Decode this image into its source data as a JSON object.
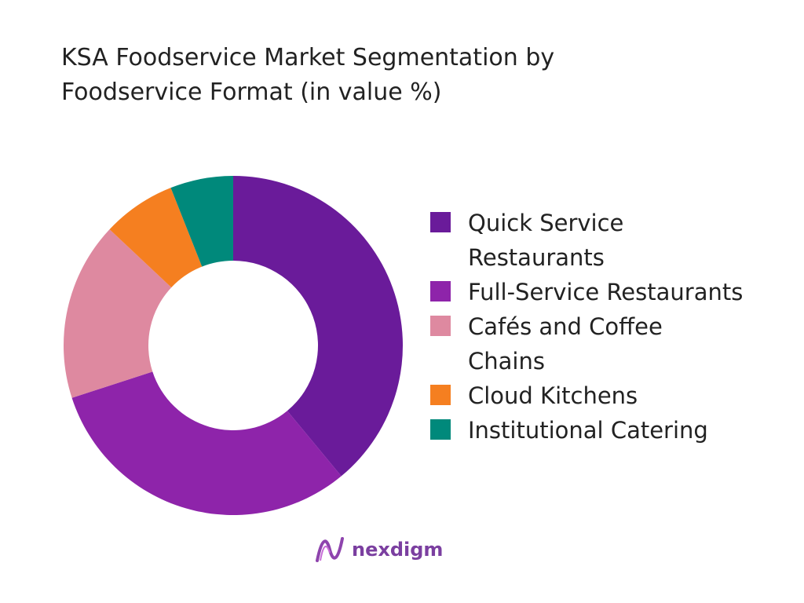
{
  "chart_data": {
    "type": "donut",
    "title": "KSA Foodservice Market Segmentation by Foodservice Format (in value %)",
    "categories": [
      "Quick Service Restaurants",
      "Full-Service Restaurants",
      "Cafés and Coffee Chains",
      "Cloud Kitchens",
      "Institutional Catering"
    ],
    "values": [
      39,
      31,
      17,
      7,
      6
    ],
    "colors": [
      "#6a1b9a",
      "#8e24aa",
      "#de89a0",
      "#f57f20",
      "#00897b"
    ]
  },
  "logo": "nexdigm"
}
